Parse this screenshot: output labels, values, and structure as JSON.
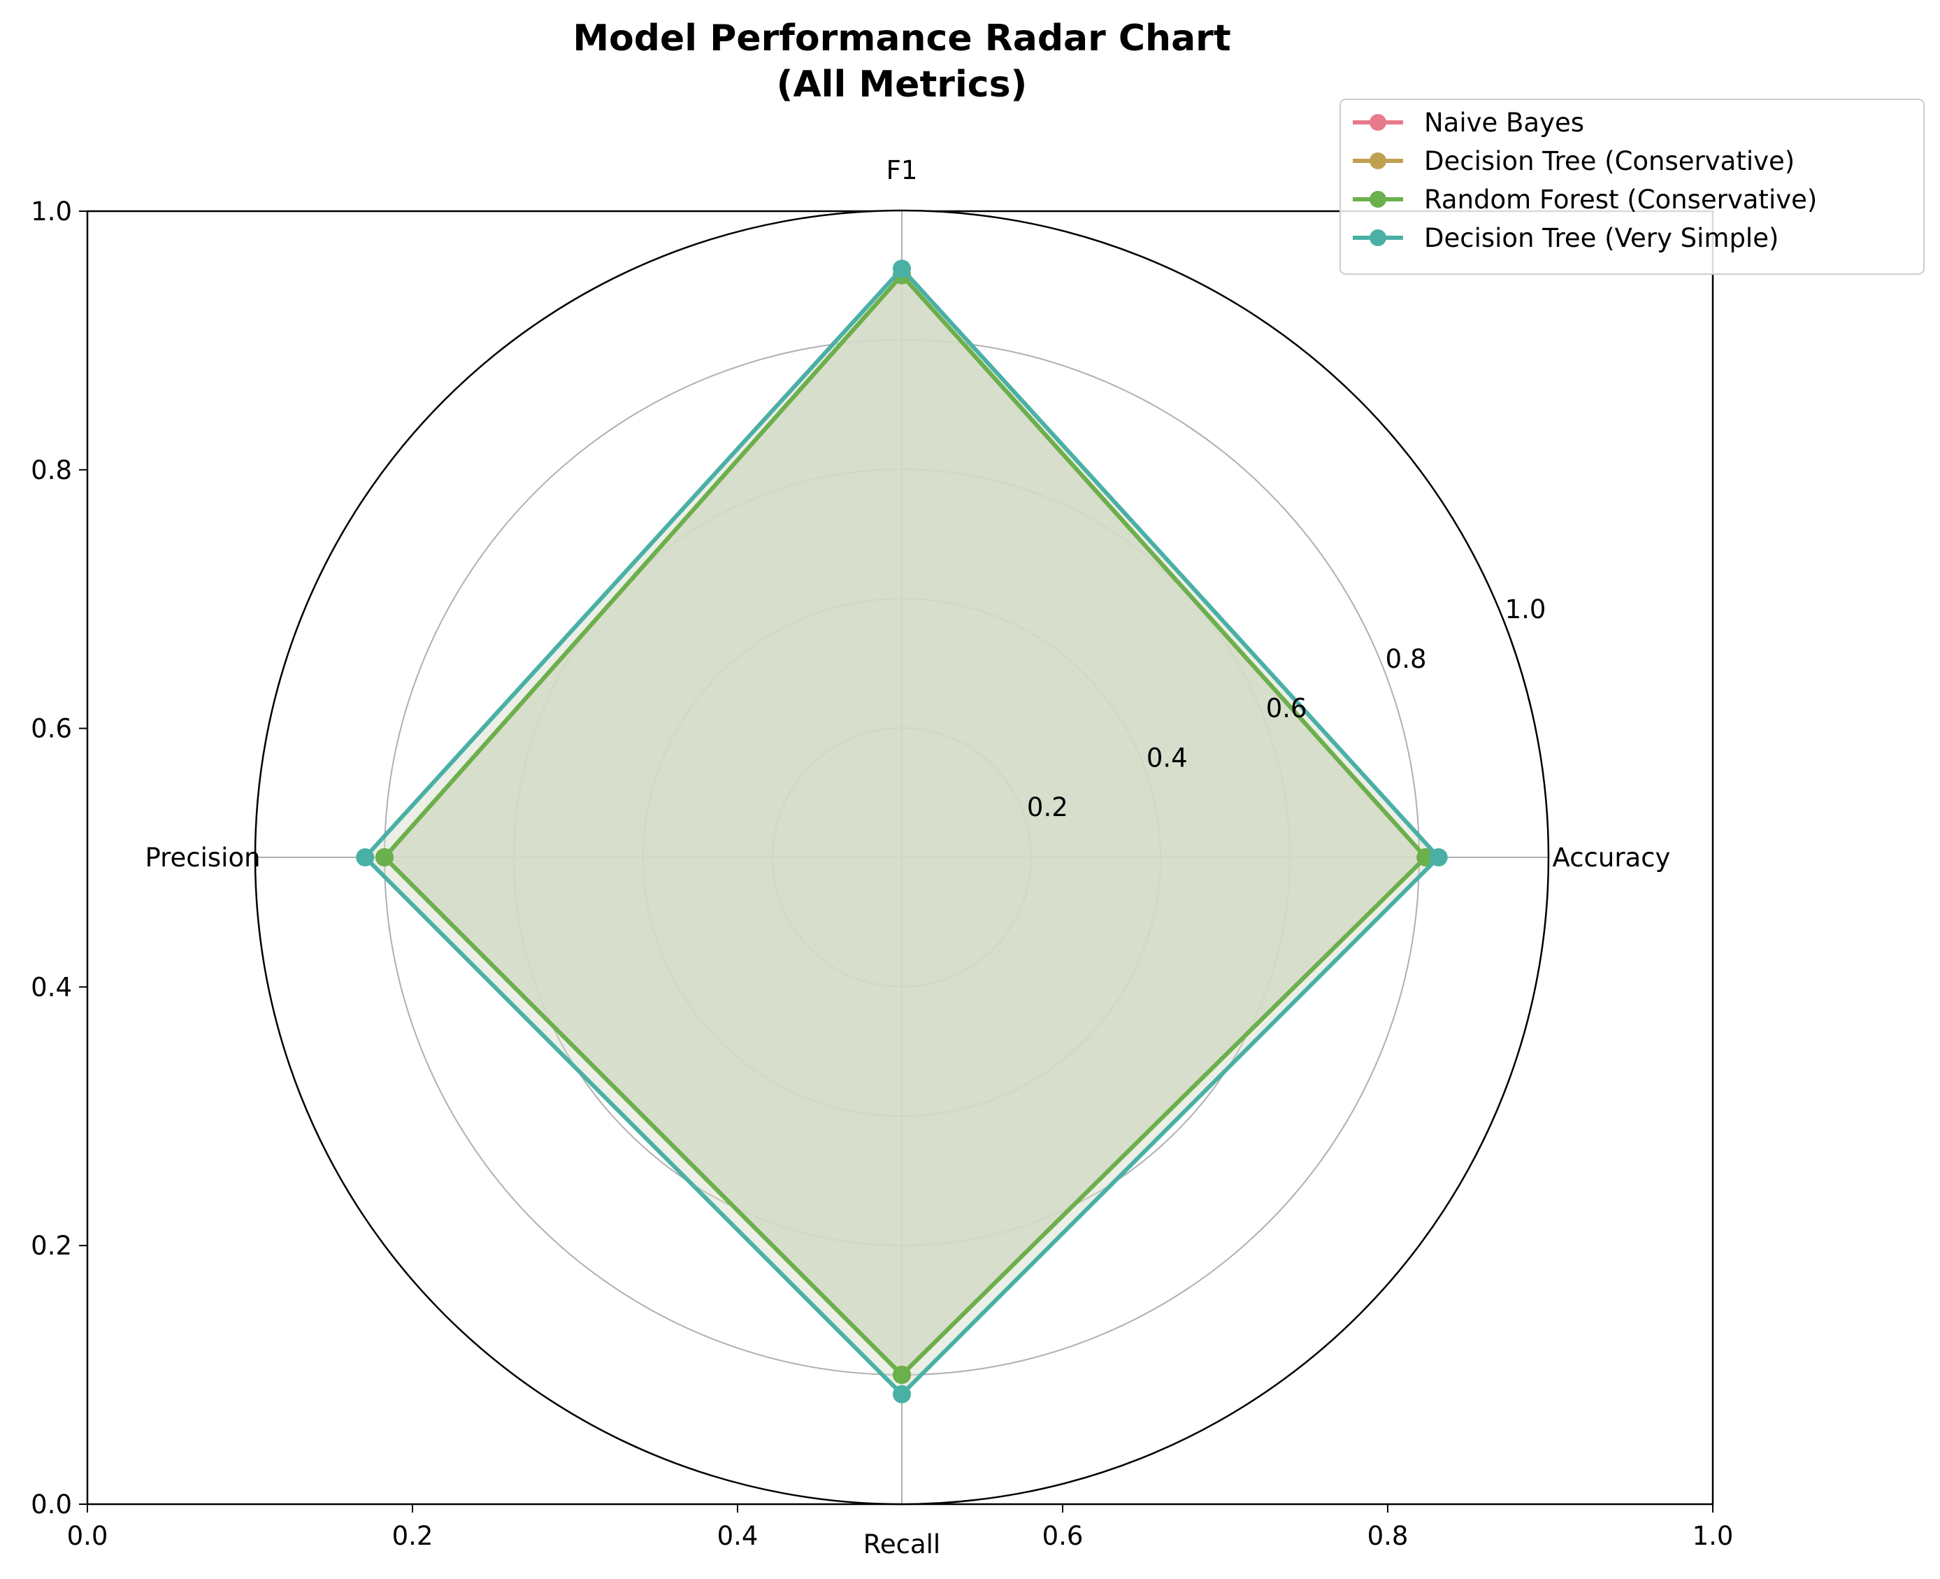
{
  "chart_data": {
    "type": "radar",
    "title_line1": "Model Performance Radar Chart",
    "title_line2": "(All Metrics)",
    "axes": [
      "Accuracy",
      "F1",
      "Precision",
      "Recall"
    ],
    "rlim": [
      0,
      1
    ],
    "r_ticks": [
      "0.2",
      "0.4",
      "0.6",
      "0.8",
      "1.0"
    ],
    "r_tick_values": [
      0.2,
      0.4,
      0.6,
      0.8,
      1.0
    ],
    "cartesian_xticks": [
      "0.0",
      "0.2",
      "0.4",
      "0.6",
      "0.8",
      "1.0"
    ],
    "cartesian_yticks": [
      "0.0",
      "0.2",
      "0.4",
      "0.6",
      "0.8",
      "1.0"
    ],
    "grid": true,
    "legend_position": "top-right",
    "fill_color": "#d3dbc7",
    "series": [
      {
        "name": "Naive Bayes",
        "color": "#e87a8e",
        "values": [
          0.81,
          0.9,
          0.8,
          0.8
        ]
      },
      {
        "name": "Decision Tree (Conservative)",
        "color": "#bfa050",
        "values": [
          0.81,
          0.9,
          0.8,
          0.8
        ]
      },
      {
        "name": "Random Forest (Conservative)",
        "color": "#6ab04c",
        "values": [
          0.81,
          0.9,
          0.8,
          0.8
        ]
      },
      {
        "name": "Decision Tree (Very Simple)",
        "color": "#4ab0a6",
        "values": [
          0.83,
          0.91,
          0.83,
          0.83
        ]
      }
    ]
  }
}
